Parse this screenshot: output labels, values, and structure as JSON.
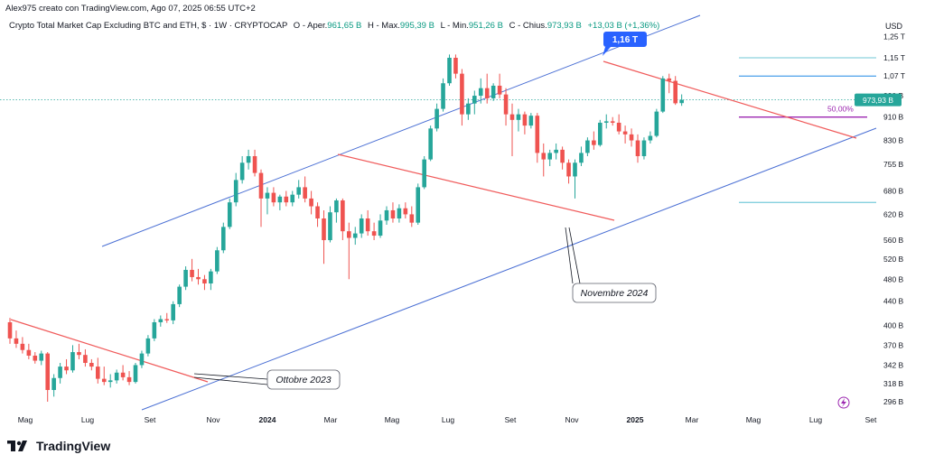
{
  "header": {
    "author_line": "Alex975 creato con TradingView.com, Ago 07, 2025 06:55 UTC+2",
    "symbol": "Crypto Total Market Cap Excluding BTC and ETH, $ · 1W · CRYPTOCAP",
    "open_label": "O - Aper.",
    "open": "961,65 B",
    "high_label": "H - Max.",
    "high": "995,39 B",
    "low_label": "L - Min.",
    "low": "951,26 B",
    "close_label": "C - Chius.",
    "close": "973,93 B",
    "change": "+13,03 B (+1,36%)"
  },
  "currency": "USD",
  "footer": {
    "brand": "TradingView"
  },
  "colors": {
    "up": "#26a69a",
    "down": "#ef5350",
    "channel": "#4a6fd4",
    "trend": "#f05a5a",
    "fib": "#3fb5c9",
    "level50": "#9c27b0"
  },
  "chart_data": {
    "type": "candlestick",
    "interval": "1W",
    "y_scale": "log",
    "y_ticks": [
      "1,25 T",
      "1,15 T",
      "1,07 T",
      "990 B",
      "910 B",
      "830 B",
      "755 B",
      "680 B",
      "620 B",
      "560 B",
      "520 B",
      "480 B",
      "440 B",
      "400 B",
      "370 B",
      "342 B",
      "318 B",
      "296 B"
    ],
    "x_ticks": [
      "Mag",
      "Lug",
      "Set",
      "Nov",
      "2024",
      "Mar",
      "Mag",
      "Lug",
      "Set",
      "Nov",
      "2025",
      "Mar",
      "Mag",
      "Lug",
      "Set"
    ],
    "last_price_label": "973,93 B",
    "annotations": {
      "peak": "1,16 T",
      "nov2024": "Novembre 2024",
      "oct2023": "Ottobre 2023",
      "fib50": "50,00%"
    },
    "candles": [
      {
        "o": 405,
        "h": 412,
        "l": 372,
        "c": 380
      },
      {
        "o": 380,
        "h": 392,
        "l": 366,
        "c": 372
      },
      {
        "o": 372,
        "h": 382,
        "l": 358,
        "c": 363
      },
      {
        "o": 363,
        "h": 372,
        "l": 350,
        "c": 355
      },
      {
        "o": 355,
        "h": 360,
        "l": 344,
        "c": 348
      },
      {
        "o": 348,
        "h": 362,
        "l": 342,
        "c": 358
      },
      {
        "o": 358,
        "h": 360,
        "l": 296,
        "c": 310
      },
      {
        "o": 310,
        "h": 330,
        "l": 302,
        "c": 325
      },
      {
        "o": 325,
        "h": 345,
        "l": 318,
        "c": 340
      },
      {
        "o": 340,
        "h": 350,
        "l": 330,
        "c": 335
      },
      {
        "o": 335,
        "h": 370,
        "l": 332,
        "c": 360
      },
      {
        "o": 360,
        "h": 372,
        "l": 350,
        "c": 356
      },
      {
        "o": 356,
        "h": 364,
        "l": 340,
        "c": 345
      },
      {
        "o": 345,
        "h": 350,
        "l": 335,
        "c": 340
      },
      {
        "o": 340,
        "h": 352,
        "l": 318,
        "c": 324
      },
      {
        "o": 324,
        "h": 340,
        "l": 316,
        "c": 320
      },
      {
        "o": 320,
        "h": 330,
        "l": 313,
        "c": 322
      },
      {
        "o": 322,
        "h": 336,
        "l": 318,
        "c": 332
      },
      {
        "o": 332,
        "h": 342,
        "l": 322,
        "c": 326
      },
      {
        "o": 326,
        "h": 334,
        "l": 316,
        "c": 320
      },
      {
        "o": 320,
        "h": 345,
        "l": 318,
        "c": 342
      },
      {
        "o": 342,
        "h": 362,
        "l": 338,
        "c": 358
      },
      {
        "o": 358,
        "h": 385,
        "l": 354,
        "c": 380
      },
      {
        "o": 380,
        "h": 410,
        "l": 376,
        "c": 405
      },
      {
        "o": 405,
        "h": 416,
        "l": 398,
        "c": 410
      },
      {
        "o": 410,
        "h": 420,
        "l": 404,
        "c": 408
      },
      {
        "o": 408,
        "h": 440,
        "l": 402,
        "c": 435
      },
      {
        "o": 435,
        "h": 470,
        "l": 430,
        "c": 466
      },
      {
        "o": 466,
        "h": 505,
        "l": 460,
        "c": 498
      },
      {
        "o": 498,
        "h": 520,
        "l": 476,
        "c": 484
      },
      {
        "o": 484,
        "h": 500,
        "l": 470,
        "c": 480
      },
      {
        "o": 480,
        "h": 488,
        "l": 460,
        "c": 472
      },
      {
        "o": 472,
        "h": 500,
        "l": 460,
        "c": 495
      },
      {
        "o": 495,
        "h": 545,
        "l": 490,
        "c": 538
      },
      {
        "o": 538,
        "h": 600,
        "l": 532,
        "c": 590
      },
      {
        "o": 590,
        "h": 660,
        "l": 585,
        "c": 650
      },
      {
        "o": 650,
        "h": 730,
        "l": 640,
        "c": 710
      },
      {
        "o": 710,
        "h": 780,
        "l": 700,
        "c": 760
      },
      {
        "o": 760,
        "h": 800,
        "l": 740,
        "c": 780
      },
      {
        "o": 780,
        "h": 800,
        "l": 720,
        "c": 730
      },
      {
        "o": 730,
        "h": 740,
        "l": 590,
        "c": 660
      },
      {
        "o": 660,
        "h": 690,
        "l": 620,
        "c": 675
      },
      {
        "o": 675,
        "h": 690,
        "l": 640,
        "c": 650
      },
      {
        "o": 650,
        "h": 670,
        "l": 630,
        "c": 665
      },
      {
        "o": 665,
        "h": 680,
        "l": 640,
        "c": 650
      },
      {
        "o": 650,
        "h": 680,
        "l": 640,
        "c": 670
      },
      {
        "o": 670,
        "h": 710,
        "l": 660,
        "c": 690
      },
      {
        "o": 690,
        "h": 720,
        "l": 650,
        "c": 660
      },
      {
        "o": 660,
        "h": 680,
        "l": 620,
        "c": 640
      },
      {
        "o": 640,
        "h": 650,
        "l": 590,
        "c": 610
      },
      {
        "o": 610,
        "h": 630,
        "l": 510,
        "c": 560
      },
      {
        "o": 560,
        "h": 640,
        "l": 555,
        "c": 625
      },
      {
        "o": 625,
        "h": 660,
        "l": 600,
        "c": 655
      },
      {
        "o": 655,
        "h": 660,
        "l": 560,
        "c": 580
      },
      {
        "o": 580,
        "h": 600,
        "l": 480,
        "c": 565
      },
      {
        "o": 565,
        "h": 590,
        "l": 550,
        "c": 575
      },
      {
        "o": 575,
        "h": 620,
        "l": 565,
        "c": 610
      },
      {
        "o": 610,
        "h": 630,
        "l": 570,
        "c": 580
      },
      {
        "o": 580,
        "h": 600,
        "l": 560,
        "c": 570
      },
      {
        "o": 570,
        "h": 620,
        "l": 565,
        "c": 605
      },
      {
        "o": 605,
        "h": 640,
        "l": 595,
        "c": 630
      },
      {
        "o": 630,
        "h": 650,
        "l": 600,
        "c": 610
      },
      {
        "o": 610,
        "h": 645,
        "l": 600,
        "c": 635
      },
      {
        "o": 635,
        "h": 650,
        "l": 610,
        "c": 620
      },
      {
        "o": 620,
        "h": 640,
        "l": 590,
        "c": 600
      },
      {
        "o": 600,
        "h": 700,
        "l": 595,
        "c": 690
      },
      {
        "o": 690,
        "h": 780,
        "l": 685,
        "c": 770
      },
      {
        "o": 770,
        "h": 880,
        "l": 765,
        "c": 870
      },
      {
        "o": 870,
        "h": 960,
        "l": 860,
        "c": 940
      },
      {
        "o": 940,
        "h": 1060,
        "l": 930,
        "c": 1040
      },
      {
        "o": 1040,
        "h": 1165,
        "l": 1030,
        "c": 1150
      },
      {
        "o": 1150,
        "h": 1165,
        "l": 1060,
        "c": 1080
      },
      {
        "o": 1080,
        "h": 1100,
        "l": 880,
        "c": 920
      },
      {
        "o": 920,
        "h": 980,
        "l": 900,
        "c": 960
      },
      {
        "o": 960,
        "h": 1010,
        "l": 920,
        "c": 990
      },
      {
        "o": 990,
        "h": 1060,
        "l": 960,
        "c": 1020
      },
      {
        "o": 1020,
        "h": 1080,
        "l": 960,
        "c": 980
      },
      {
        "o": 980,
        "h": 1040,
        "l": 970,
        "c": 1030
      },
      {
        "o": 1030,
        "h": 1080,
        "l": 980,
        "c": 995
      },
      {
        "o": 995,
        "h": 1020,
        "l": 880,
        "c": 920
      },
      {
        "o": 920,
        "h": 960,
        "l": 780,
        "c": 900
      },
      {
        "o": 900,
        "h": 940,
        "l": 860,
        "c": 920
      },
      {
        "o": 920,
        "h": 930,
        "l": 850,
        "c": 880
      },
      {
        "o": 880,
        "h": 925,
        "l": 870,
        "c": 915
      },
      {
        "o": 915,
        "h": 925,
        "l": 760,
        "c": 790
      },
      {
        "o": 790,
        "h": 820,
        "l": 720,
        "c": 770
      },
      {
        "o": 770,
        "h": 800,
        "l": 750,
        "c": 790
      },
      {
        "o": 790,
        "h": 820,
        "l": 770,
        "c": 800
      },
      {
        "o": 800,
        "h": 810,
        "l": 740,
        "c": 760
      },
      {
        "o": 760,
        "h": 770,
        "l": 700,
        "c": 720
      },
      {
        "o": 720,
        "h": 770,
        "l": 660,
        "c": 760
      },
      {
        "o": 760,
        "h": 810,
        "l": 750,
        "c": 790
      },
      {
        "o": 790,
        "h": 840,
        "l": 780,
        "c": 830
      },
      {
        "o": 830,
        "h": 860,
        "l": 800,
        "c": 815
      },
      {
        "o": 815,
        "h": 900,
        "l": 810,
        "c": 890
      },
      {
        "o": 890,
        "h": 920,
        "l": 870,
        "c": 895
      },
      {
        "o": 895,
        "h": 910,
        "l": 880,
        "c": 890
      },
      {
        "o": 890,
        "h": 920,
        "l": 850,
        "c": 860
      },
      {
        "o": 860,
        "h": 880,
        "l": 820,
        "c": 850
      },
      {
        "o": 850,
        "h": 870,
        "l": 810,
        "c": 830
      },
      {
        "o": 830,
        "h": 850,
        "l": 760,
        "c": 780
      },
      {
        "o": 780,
        "h": 840,
        "l": 770,
        "c": 830
      },
      {
        "o": 830,
        "h": 860,
        "l": 820,
        "c": 845
      },
      {
        "o": 845,
        "h": 940,
        "l": 840,
        "c": 930
      },
      {
        "o": 930,
        "h": 1070,
        "l": 925,
        "c": 1060
      },
      {
        "o": 1060,
        "h": 1080,
        "l": 1000,
        "c": 1050
      },
      {
        "o": 1050,
        "h": 1070,
        "l": 955,
        "c": 961
      },
      {
        "o": 961.65,
        "h": 995.39,
        "l": 951.26,
        "c": 973.93
      }
    ]
  }
}
